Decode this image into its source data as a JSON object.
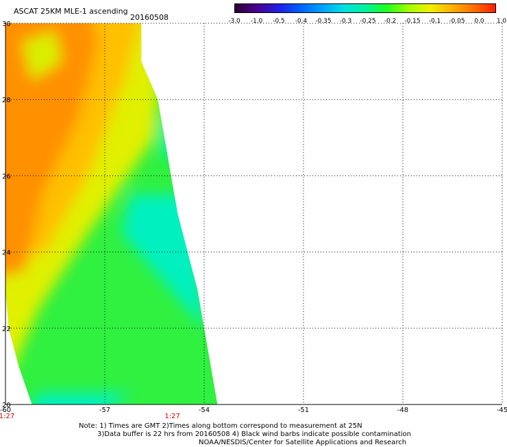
{
  "header": {
    "title": "ASCAT 25KM MLE-1 ascending",
    "date": "20160508"
  },
  "colorbar": {
    "labels": [
      "-3.0",
      "-1.0",
      "-0.5",
      "-0.4",
      "-0.35",
      "-0.3",
      "-0.25",
      "-0.2",
      "-0.15",
      "-0.1",
      "-0.05",
      "0.0",
      "1.0"
    ],
    "colors": [
      "#2a0030",
      "#4a0090",
      "#2020e0",
      "#0060ff",
      "#00a0ff",
      "#00e0e0",
      "#00f0a0",
      "#20ff20",
      "#a0ff00",
      "#f0f000",
      "#ffb000",
      "#ff7000",
      "#ff2000"
    ]
  },
  "chart_data": {
    "type": "heatmap",
    "title": "ASCAT 25KM MLE-1 ascending",
    "xlim": [
      -60,
      -45
    ],
    "ylim": [
      20,
      30
    ],
    "x_ticks": [
      "-60",
      "-57",
      "-54",
      "-51",
      "-48",
      "-45"
    ],
    "y_ticks": [
      "20",
      "22",
      "24",
      "26",
      "28",
      "30"
    ],
    "grid": true,
    "time_labels": [
      {
        "x": -60,
        "text": "1:27"
      },
      {
        "x": -55,
        "text": "1:27"
      }
    ],
    "swath": {
      "east_edge": [
        [
          20,
          -53.6
        ],
        [
          21,
          -53.8
        ],
        [
          22,
          -54.0
        ],
        [
          23,
          -54.2
        ],
        [
          24,
          -54.5
        ],
        [
          25,
          -54.8
        ],
        [
          26,
          -55.0
        ],
        [
          27,
          -55.2
        ],
        [
          28,
          -55.4
        ],
        [
          29,
          -55.9
        ],
        [
          30,
          -55.9
        ]
      ],
      "west_edge": [
        [
          20,
          -59.2
        ],
        [
          21,
          -59.6
        ],
        [
          22,
          -59.9
        ],
        [
          23,
          -60.0
        ],
        [
          30,
          -60.0
        ]
      ]
    },
    "regions": [
      {
        "value": 0.0,
        "color": "#ff9000",
        "area": "northwest"
      },
      {
        "value": -0.05,
        "color": "#ffc000",
        "area": "central"
      },
      {
        "value": -0.1,
        "color": "#e0f000",
        "area": "transition"
      },
      {
        "value": -0.2,
        "color": "#30ff30",
        "area": "south-central"
      },
      {
        "value": -0.3,
        "color": "#00f0c0",
        "area": "southeast edge"
      }
    ]
  },
  "notes": [
    "Note: 1) Times are GMT 2)Times along bottom correspond to measurement at 25N",
    "3)Data buffer is 22 hrs from 20160508 4) Black wind barbs indicate possible contamination",
    "NOAA/NESDIS/Center for Satellite Applications and Research"
  ]
}
